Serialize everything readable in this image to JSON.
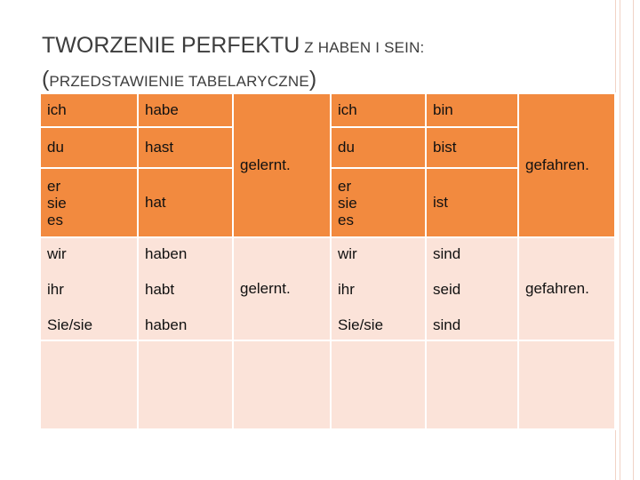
{
  "title": {
    "line1_big": "TWORZENIE PERFEKTU",
    "line1_small": " Z HABEN I SEIN:",
    "line2_big_open": "(",
    "line2_small": "PRZEDSTAWIENIE TABELARYCZNE",
    "line2_big_close": ")"
  },
  "singular": {
    "rows": [
      {
        "pronoun": "ich",
        "haben": "habe",
        "sein_pronoun": "ich",
        "sein": "bin"
      },
      {
        "pronoun": "du",
        "haben": "hast",
        "sein_pronoun": "du",
        "sein": "bist"
      },
      {
        "pronoun_lines": [
          "er",
          "sie",
          "es"
        ],
        "haben": "hat",
        "sein_pronoun_lines": [
          "er",
          "sie",
          "es"
        ],
        "sein": "ist"
      }
    ],
    "participle_haben": "gelernt.",
    "participle_sein": "gefahren."
  },
  "plural": {
    "rows": [
      {
        "pronoun": "wir",
        "haben": "haben",
        "sein_pronoun": "wir",
        "sein": "sind"
      },
      {
        "pronoun": "ihr",
        "haben": "habt",
        "sein_pronoun": "ihr",
        "sein": "seid"
      },
      {
        "pronoun": "Sie/sie",
        "haben": "haben",
        "sein_pronoun": "Sie/sie",
        "sein": "sind"
      }
    ],
    "participle_haben": "gelernt.",
    "participle_sein": "gefahren."
  },
  "colors": {
    "header_band": "#f28a3f",
    "lower_band": "#fbe3d9",
    "border": "#ffffff"
  }
}
